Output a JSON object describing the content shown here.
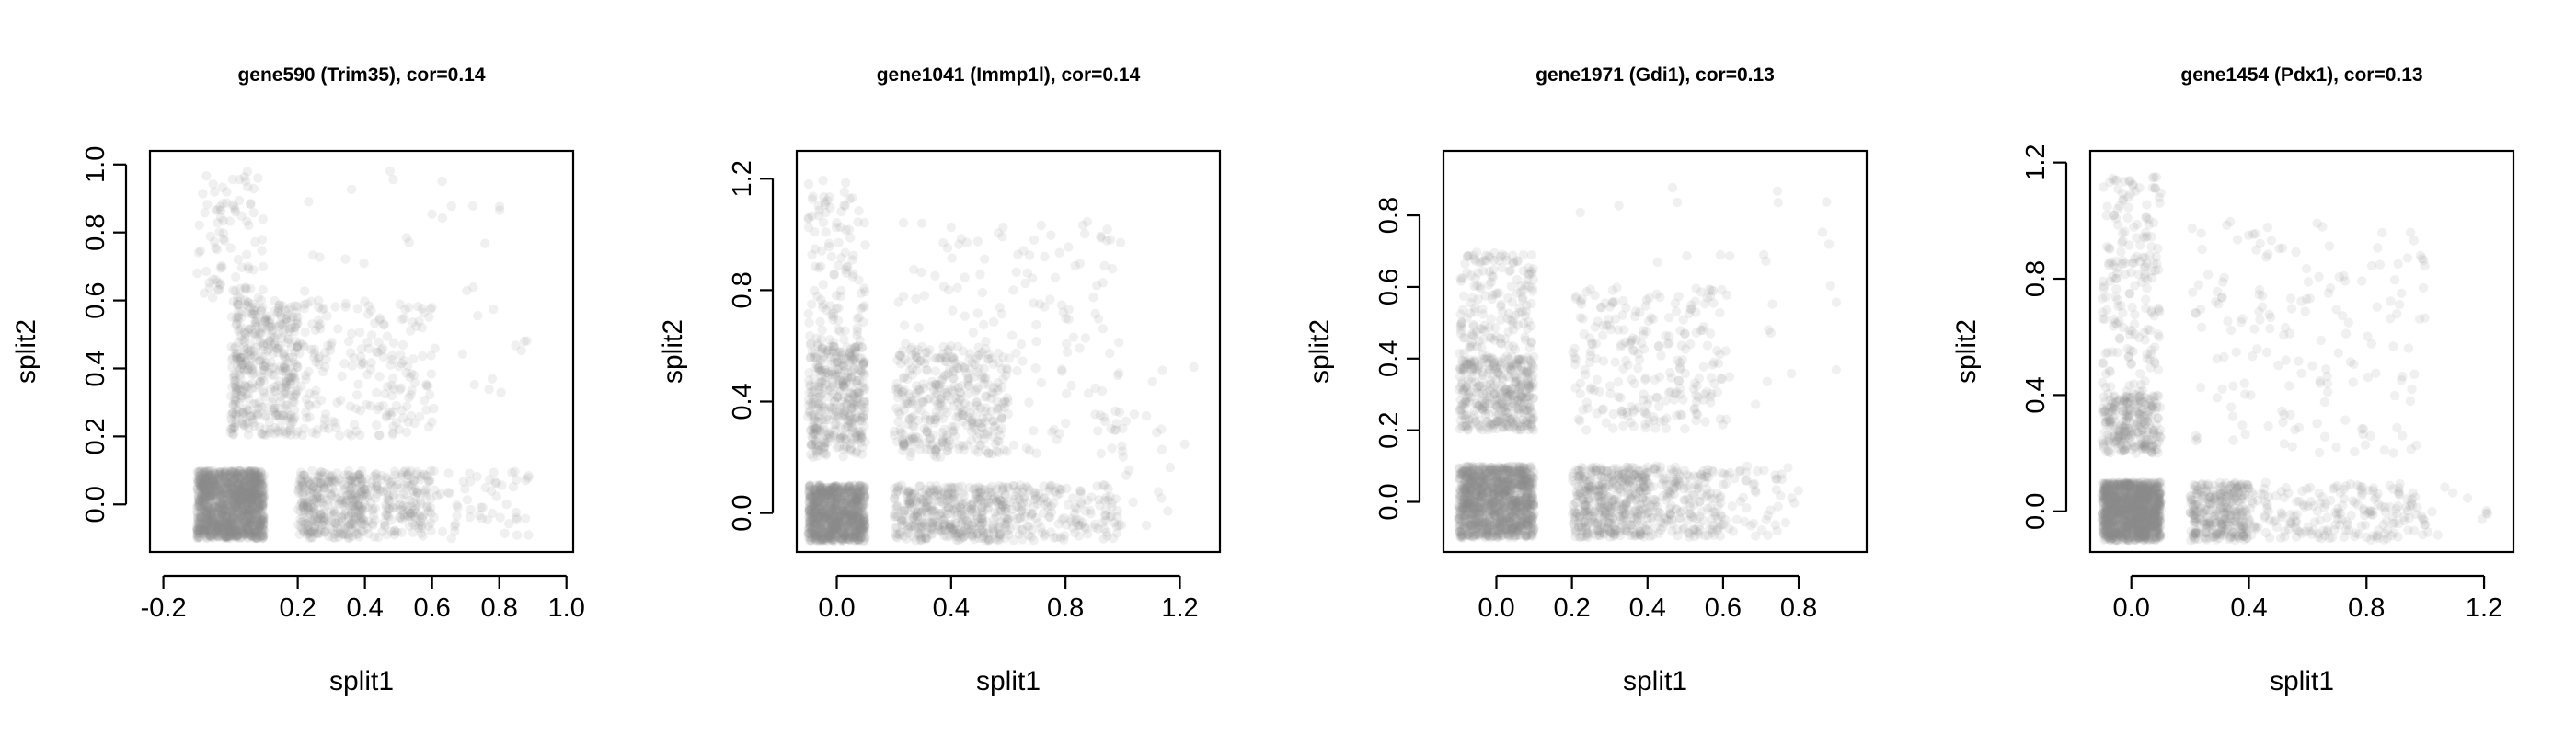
{
  "chart_data": [
    {
      "type": "scatter",
      "title": "gene590 (Trim35), cor=0.14",
      "xlabel": "split1",
      "ylabel": "split2",
      "xlim": [
        -0.24,
        1.02
      ],
      "ylim": [
        -0.14,
        1.04
      ],
      "x_ticks": [
        {
          "value": -0.2,
          "label": "-0.2"
        },
        {
          "value": 0.2,
          "label": "0.2"
        },
        {
          "value": 0.4,
          "label": "0.4"
        },
        {
          "value": 0.6,
          "label": "0.6"
        },
        {
          "value": 0.8,
          "label": "0.8"
        },
        {
          "value": 1.0,
          "label": "1.0"
        }
      ],
      "y_ticks": [
        {
          "value": 0.0,
          "label": "0.0"
        },
        {
          "value": 0.2,
          "label": "0.2"
        },
        {
          "value": 0.4,
          "label": "0.4"
        },
        {
          "value": 0.6,
          "label": "0.6"
        },
        {
          "value": 0.8,
          "label": "0.8"
        },
        {
          "value": 1.0,
          "label": "1.0"
        }
      ],
      "point_color": "#888888",
      "clusters": [
        {
          "x": [
            -0.1,
            0.1
          ],
          "y": [
            -0.1,
            0.1
          ],
          "n": 1400
        },
        {
          "x": [
            0.0,
            0.2
          ],
          "y": [
            0.2,
            0.6
          ],
          "n": 420
        },
        {
          "x": [
            -0.1,
            0.1
          ],
          "y": [
            0.6,
            0.98
          ],
          "n": 90
        },
        {
          "x": [
            0.2,
            0.4
          ],
          "y": [
            -0.1,
            0.1
          ],
          "n": 340
        },
        {
          "x": [
            0.4,
            0.6
          ],
          "y": [
            -0.1,
            0.1
          ],
          "n": 170
        },
        {
          "x": [
            0.6,
            0.9
          ],
          "y": [
            -0.1,
            0.1
          ],
          "n": 55
        },
        {
          "x": [
            0.2,
            0.6
          ],
          "y": [
            0.2,
            0.6
          ],
          "n": 190
        },
        {
          "x": [
            0.2,
            0.9
          ],
          "y": [
            0.2,
            1.0
          ],
          "n": 45
        }
      ]
    },
    {
      "type": "scatter",
      "title": "gene1041 (Immp1l), cor=0.14",
      "xlabel": "split1",
      "ylabel": "split2",
      "xlim": [
        -0.14,
        1.34
      ],
      "ylim": [
        -0.14,
        1.3
      ],
      "x_ticks": [
        {
          "value": 0.0,
          "label": "0.0"
        },
        {
          "value": 0.4,
          "label": "0.4"
        },
        {
          "value": 0.8,
          "label": "0.8"
        },
        {
          "value": 1.2,
          "label": "1.2"
        }
      ],
      "y_ticks": [
        {
          "value": 0.0,
          "label": "0.0"
        },
        {
          "value": 0.4,
          "label": "0.4"
        },
        {
          "value": 0.8,
          "label": "0.8"
        },
        {
          "value": 1.2,
          "label": "1.2"
        }
      ],
      "point_color": "#888888",
      "clusters": [
        {
          "x": [
            -0.1,
            0.1
          ],
          "y": [
            -0.1,
            0.1
          ],
          "n": 950
        },
        {
          "x": [
            -0.1,
            0.1
          ],
          "y": [
            0.2,
            0.6
          ],
          "n": 380
        },
        {
          "x": [
            -0.1,
            0.1
          ],
          "y": [
            0.6,
            1.2
          ],
          "n": 110
        },
        {
          "x": [
            0.2,
            0.6
          ],
          "y": [
            -0.1,
            0.1
          ],
          "n": 420
        },
        {
          "x": [
            0.6,
            1.0
          ],
          "y": [
            -0.1,
            0.1
          ],
          "n": 160
        },
        {
          "x": [
            0.2,
            0.6
          ],
          "y": [
            0.2,
            0.6
          ],
          "n": 330
        },
        {
          "x": [
            0.2,
            1.0
          ],
          "y": [
            0.2,
            1.05
          ],
          "n": 180
        },
        {
          "x": [
            0.9,
            1.25
          ],
          "y": [
            -0.1,
            0.6
          ],
          "n": 22
        }
      ]
    },
    {
      "type": "scatter",
      "title": "gene1971 (Gdi1), cor=0.13",
      "xlabel": "split1",
      "ylabel": "split2",
      "xlim": [
        -0.14,
        0.98
      ],
      "ylim": [
        -0.14,
        0.98
      ],
      "x_ticks": [
        {
          "value": 0.0,
          "label": "0.0"
        },
        {
          "value": 0.2,
          "label": "0.2"
        },
        {
          "value": 0.4,
          "label": "0.4"
        },
        {
          "value": 0.6,
          "label": "0.6"
        },
        {
          "value": 0.8,
          "label": "0.8"
        }
      ],
      "y_ticks": [
        {
          "value": 0.0,
          "label": "0.0"
        },
        {
          "value": 0.2,
          "label": "0.2"
        },
        {
          "value": 0.4,
          "label": "0.4"
        },
        {
          "value": 0.6,
          "label": "0.6"
        },
        {
          "value": 0.8,
          "label": "0.8"
        }
      ],
      "point_color": "#888888",
      "clusters": [
        {
          "x": [
            -0.1,
            0.1
          ],
          "y": [
            -0.1,
            0.1
          ],
          "n": 1200
        },
        {
          "x": [
            -0.1,
            0.1
          ],
          "y": [
            0.2,
            0.4
          ],
          "n": 380
        },
        {
          "x": [
            -0.1,
            0.1
          ],
          "y": [
            0.4,
            0.7
          ],
          "n": 170
        },
        {
          "x": [
            0.2,
            0.4
          ],
          "y": [
            -0.1,
            0.1
          ],
          "n": 420
        },
        {
          "x": [
            0.4,
            0.6
          ],
          "y": [
            -0.1,
            0.1
          ],
          "n": 180
        },
        {
          "x": [
            0.6,
            0.8
          ],
          "y": [
            -0.1,
            0.1
          ],
          "n": 50
        },
        {
          "x": [
            0.2,
            0.6
          ],
          "y": [
            0.2,
            0.6
          ],
          "n": 230
        },
        {
          "x": [
            0.2,
            0.9
          ],
          "y": [
            0.2,
            0.9
          ],
          "n": 40
        }
      ]
    },
    {
      "type": "scatter",
      "title": "gene1454 (Pdx1), cor=0.13",
      "xlabel": "split1",
      "ylabel": "split2",
      "xlim": [
        -0.14,
        1.3
      ],
      "ylim": [
        -0.14,
        1.24
      ],
      "x_ticks": [
        {
          "value": 0.0,
          "label": "0.0"
        },
        {
          "value": 0.4,
          "label": "0.4"
        },
        {
          "value": 0.8,
          "label": "0.8"
        },
        {
          "value": 1.2,
          "label": "1.2"
        }
      ],
      "y_ticks": [
        {
          "value": 0.0,
          "label": "0.0"
        },
        {
          "value": 0.4,
          "label": "0.4"
        },
        {
          "value": 0.8,
          "label": "0.8"
        },
        {
          "value": 1.2,
          "label": "1.2"
        }
      ],
      "point_color": "#888888",
      "clusters": [
        {
          "x": [
            -0.1,
            0.1
          ],
          "y": [
            -0.1,
            0.1
          ],
          "n": 1300
        },
        {
          "x": [
            -0.1,
            0.1
          ],
          "y": [
            0.2,
            0.4
          ],
          "n": 260
        },
        {
          "x": [
            -0.1,
            0.1
          ],
          "y": [
            0.4,
            1.15
          ],
          "n": 190
        },
        {
          "x": [
            0.2,
            0.4
          ],
          "y": [
            -0.1,
            0.1
          ],
          "n": 300
        },
        {
          "x": [
            0.4,
            1.0
          ],
          "y": [
            -0.1,
            0.1
          ],
          "n": 200
        },
        {
          "x": [
            0.2,
            1.0
          ],
          "y": [
            0.2,
            1.0
          ],
          "n": 170
        },
        {
          "x": [
            1.0,
            1.25
          ],
          "y": [
            -0.1,
            0.1
          ],
          "n": 10
        }
      ]
    }
  ]
}
